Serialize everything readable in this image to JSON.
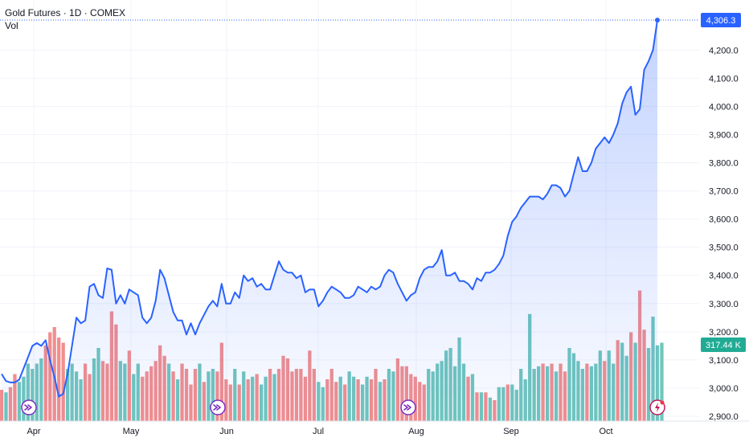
{
  "legend": {
    "title": "Gold Futures · 1D · COMEX",
    "volume_label": "Vol"
  },
  "colors": {
    "line": "#2962ff",
    "area_top": "#2962ff",
    "vol_up": "#70c6bd",
    "vol_down": "#f28e8e",
    "grid": "#f0f3fa",
    "axis_text": "#131722",
    "price_tag_bg": "#2962ff",
    "vol_tag_bg": "#22ab94",
    "event_icon": "#7b2cbf",
    "alert_icon": "#c2185b"
  },
  "price_tag": "4,306.3",
  "volume_tag": "317.44 K",
  "event_icons": [
    "forward-arrow-icon",
    "forward-arrow-icon",
    "forward-arrow-icon",
    "lightning-icon"
  ],
  "chart_data": {
    "type": "line",
    "title": "Gold Futures · 1D · COMEX",
    "x_tick_labels": [
      "Apr",
      "May",
      "Jun",
      "Jul",
      "Aug",
      "Sep",
      "Oct"
    ],
    "y_tick_labels": [
      "2,900.0",
      "3,000.0",
      "3,100.0",
      "3,200.0",
      "3,300.0",
      "3,400.0",
      "3,500.0",
      "3,600.0",
      "3,700.0",
      "3,800.0",
      "3,900.0",
      "4,000.0",
      "4,100.0",
      "4,200.0"
    ],
    "ylim": [
      2900,
      4306.3
    ],
    "grid": true,
    "series": [
      {
        "name": "Gold Futures",
        "values": [
          3050,
          3025,
          3020,
          3020,
          3030,
          3070,
          3110,
          3150,
          3160,
          3150,
          3170,
          3100,
          3040,
          2970,
          2980,
          3050,
          3150,
          3250,
          3230,
          3240,
          3360,
          3370,
          3330,
          3320,
          3425,
          3420,
          3300,
          3330,
          3300,
          3350,
          3340,
          3330,
          3250,
          3230,
          3250,
          3310,
          3420,
          3390,
          3330,
          3270,
          3240,
          3240,
          3190,
          3230,
          3190,
          3230,
          3260,
          3290,
          3310,
          3290,
          3370,
          3300,
          3300,
          3340,
          3320,
          3400,
          3380,
          3390,
          3360,
          3370,
          3350,
          3350,
          3400,
          3450,
          3420,
          3410,
          3410,
          3390,
          3400,
          3340,
          3350,
          3350,
          3290,
          3310,
          3340,
          3360,
          3350,
          3340,
          3320,
          3320,
          3330,
          3360,
          3350,
          3340,
          3360,
          3350,
          3360,
          3400,
          3420,
          3410,
          3370,
          3340,
          3310,
          3330,
          3340,
          3390,
          3420,
          3430,
          3430,
          3450,
          3490,
          3400,
          3400,
          3410,
          3380,
          3380,
          3370,
          3350,
          3390,
          3380,
          3410,
          3410,
          3420,
          3440,
          3470,
          3540,
          3590,
          3610,
          3640,
          3660,
          3680,
          3680,
          3680,
          3670,
          3690,
          3720,
          3720,
          3710,
          3680,
          3700,
          3760,
          3820,
          3770,
          3770,
          3800,
          3850,
          3870,
          3890,
          3870,
          3900,
          3940,
          4010,
          4050,
          4070,
          3970,
          3990,
          4130,
          4160,
          4200,
          4306.3
        ]
      }
    ],
    "volume_ylim": [
      0,
      400
    ],
    "volume": [
      {
        "v": 60,
        "up": false
      },
      {
        "v": 55,
        "up": true
      },
      {
        "v": 65,
        "up": false
      },
      {
        "v": 90,
        "up": false
      },
      {
        "v": 75,
        "up": true
      },
      {
        "v": 85,
        "up": true
      },
      {
        "v": 110,
        "up": true
      },
      {
        "v": 100,
        "up": true
      },
      {
        "v": 110,
        "up": true
      },
      {
        "v": 120,
        "up": true
      },
      {
        "v": 145,
        "up": false
      },
      {
        "v": 170,
        "up": false
      },
      {
        "v": 180,
        "up": false
      },
      {
        "v": 160,
        "up": false
      },
      {
        "v": 150,
        "up": false
      },
      {
        "v": 100,
        "up": true
      },
      {
        "v": 110,
        "up": true
      },
      {
        "v": 95,
        "up": true
      },
      {
        "v": 80,
        "up": true
      },
      {
        "v": 110,
        "up": false
      },
      {
        "v": 90,
        "up": false
      },
      {
        "v": 120,
        "up": true
      },
      {
        "v": 140,
        "up": true
      },
      {
        "v": 115,
        "up": false
      },
      {
        "v": 110,
        "up": false
      },
      {
        "v": 210,
        "up": false
      },
      {
        "v": 185,
        "up": false
      },
      {
        "v": 115,
        "up": true
      },
      {
        "v": 110,
        "up": true
      },
      {
        "v": 135,
        "up": false
      },
      {
        "v": 90,
        "up": true
      },
      {
        "v": 110,
        "up": true
      },
      {
        "v": 85,
        "up": false
      },
      {
        "v": 95,
        "up": false
      },
      {
        "v": 105,
        "up": false
      },
      {
        "v": 115,
        "up": false
      },
      {
        "v": 145,
        "up": false
      },
      {
        "v": 125,
        "up": false
      },
      {
        "v": 110,
        "up": true
      },
      {
        "v": 95,
        "up": false
      },
      {
        "v": 80,
        "up": true
      },
      {
        "v": 110,
        "up": false
      },
      {
        "v": 100,
        "up": false
      },
      {
        "v": 70,
        "up": false
      },
      {
        "v": 100,
        "up": false
      },
      {
        "v": 110,
        "up": true
      },
      {
        "v": 75,
        "up": false
      },
      {
        "v": 95,
        "up": true
      },
      {
        "v": 100,
        "up": true
      },
      {
        "v": 95,
        "up": false
      },
      {
        "v": 150,
        "up": false
      },
      {
        "v": 80,
        "up": false
      },
      {
        "v": 70,
        "up": false
      },
      {
        "v": 100,
        "up": true
      },
      {
        "v": 70,
        "up": false
      },
      {
        "v": 95,
        "up": true
      },
      {
        "v": 80,
        "up": false
      },
      {
        "v": 85,
        "up": true
      },
      {
        "v": 90,
        "up": false
      },
      {
        "v": 70,
        "up": true
      },
      {
        "v": 85,
        "up": true
      },
      {
        "v": 100,
        "up": false
      },
      {
        "v": 90,
        "up": true
      },
      {
        "v": 100,
        "up": false
      },
      {
        "v": 125,
        "up": false
      },
      {
        "v": 120,
        "up": false
      },
      {
        "v": 95,
        "up": false
      },
      {
        "v": 100,
        "up": false
      },
      {
        "v": 100,
        "up": false
      },
      {
        "v": 85,
        "up": false
      },
      {
        "v": 135,
        "up": false
      },
      {
        "v": 100,
        "up": false
      },
      {
        "v": 75,
        "up": true
      },
      {
        "v": 65,
        "up": true
      },
      {
        "v": 80,
        "up": false
      },
      {
        "v": 100,
        "up": false
      },
      {
        "v": 75,
        "up": false
      },
      {
        "v": 85,
        "up": true
      },
      {
        "v": 70,
        "up": false
      },
      {
        "v": 95,
        "up": true
      },
      {
        "v": 85,
        "up": true
      },
      {
        "v": 80,
        "up": false
      },
      {
        "v": 70,
        "up": true
      },
      {
        "v": 85,
        "up": true
      },
      {
        "v": 80,
        "up": false
      },
      {
        "v": 100,
        "up": false
      },
      {
        "v": 75,
        "up": true
      },
      {
        "v": 80,
        "up": false
      },
      {
        "v": 100,
        "up": true
      },
      {
        "v": 95,
        "up": true
      },
      {
        "v": 120,
        "up": false
      },
      {
        "v": 105,
        "up": false
      },
      {
        "v": 105,
        "up": false
      },
      {
        "v": 90,
        "up": false
      },
      {
        "v": 85,
        "up": false
      },
      {
        "v": 75,
        "up": false
      },
      {
        "v": 70,
        "up": false
      },
      {
        "v": 100,
        "up": true
      },
      {
        "v": 95,
        "up": true
      },
      {
        "v": 110,
        "up": true
      },
      {
        "v": 115,
        "up": true
      },
      {
        "v": 135,
        "up": true
      },
      {
        "v": 140,
        "up": true
      },
      {
        "v": 105,
        "up": true
      },
      {
        "v": 160,
        "up": true
      },
      {
        "v": 110,
        "up": true
      },
      {
        "v": 85,
        "up": false
      },
      {
        "v": 90,
        "up": true
      },
      {
        "v": 55,
        "up": false
      },
      {
        "v": 55,
        "up": true
      },
      {
        "v": 55,
        "up": false
      },
      {
        "v": 45,
        "up": true
      },
      {
        "v": 40,
        "up": false
      },
      {
        "v": 65,
        "up": true
      },
      {
        "v": 65,
        "up": true
      },
      {
        "v": 70,
        "up": false
      },
      {
        "v": 70,
        "up": true
      },
      {
        "v": 60,
        "up": true
      },
      {
        "v": 100,
        "up": true
      },
      {
        "v": 80,
        "up": true
      },
      {
        "v": 205,
        "up": true
      },
      {
        "v": 100,
        "up": true
      },
      {
        "v": 105,
        "up": true
      },
      {
        "v": 110,
        "up": false
      },
      {
        "v": 105,
        "up": true
      },
      {
        "v": 110,
        "up": false
      },
      {
        "v": 95,
        "up": true
      },
      {
        "v": 110,
        "up": false
      },
      {
        "v": 95,
        "up": false
      },
      {
        "v": 140,
        "up": true
      },
      {
        "v": 130,
        "up": true
      },
      {
        "v": 115,
        "up": true
      },
      {
        "v": 100,
        "up": true
      },
      {
        "v": 110,
        "up": false
      },
      {
        "v": 105,
        "up": true
      },
      {
        "v": 110,
        "up": true
      },
      {
        "v": 135,
        "up": true
      },
      {
        "v": 115,
        "up": false
      },
      {
        "v": 135,
        "up": true
      },
      {
        "v": 110,
        "up": true
      },
      {
        "v": 155,
        "up": false
      },
      {
        "v": 150,
        "up": true
      },
      {
        "v": 125,
        "up": true
      },
      {
        "v": 170,
        "up": false
      },
      {
        "v": 150,
        "up": true
      },
      {
        "v": 250,
        "up": false
      },
      {
        "v": 175,
        "up": false
      },
      {
        "v": 140,
        "up": true
      },
      {
        "v": 200,
        "up": true
      },
      {
        "v": 145,
        "up": true
      },
      {
        "v": 150,
        "up": true
      }
    ]
  }
}
